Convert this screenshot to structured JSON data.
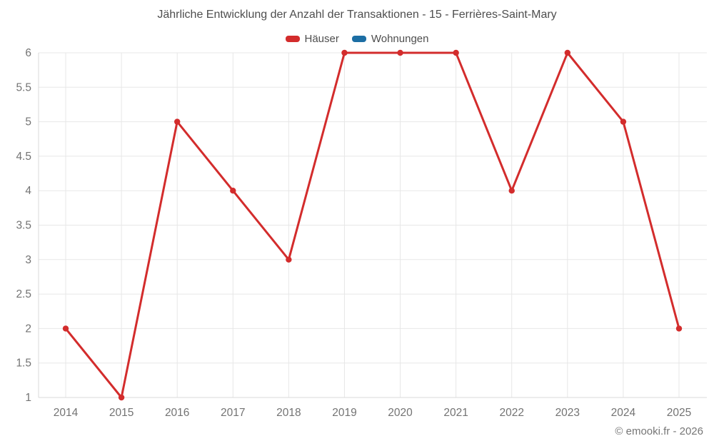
{
  "title": "Jährliche Entwicklung der Anzahl der Transaktionen - 15 - Ferrières-Saint-Mary",
  "legend": [
    {
      "label": "Häuser",
      "color": "#d32c2c"
    },
    {
      "label": "Wohnungen",
      "color": "#1c6ea4"
    }
  ],
  "footer": {
    "copyright": "© emooki.fr - 2026"
  },
  "colors": {
    "grid": "#e7e7e7",
    "axis": "#d9d9d9",
    "tick_text": "#737373"
  },
  "chart_data": {
    "type": "line",
    "title": "Jährliche Entwicklung der Anzahl der Transaktionen - 15 - Ferrières-Saint-Mary",
    "categories": [
      "2014",
      "2015",
      "2016",
      "2017",
      "2018",
      "2019",
      "2020",
      "2021",
      "2022",
      "2023",
      "2024",
      "2025"
    ],
    "series": [
      {
        "name": "Häuser",
        "color": "#d32c2c",
        "values": [
          2,
          1,
          5,
          4,
          3,
          6,
          6,
          6,
          4,
          6,
          5,
          2
        ]
      },
      {
        "name": "Wohnungen",
        "color": "#1c6ea4",
        "values": []
      }
    ],
    "xlabel": "",
    "ylabel": "",
    "ylim": [
      1,
      6
    ],
    "ytick_step": 0.5,
    "grid": true,
    "legend_position": "top"
  }
}
